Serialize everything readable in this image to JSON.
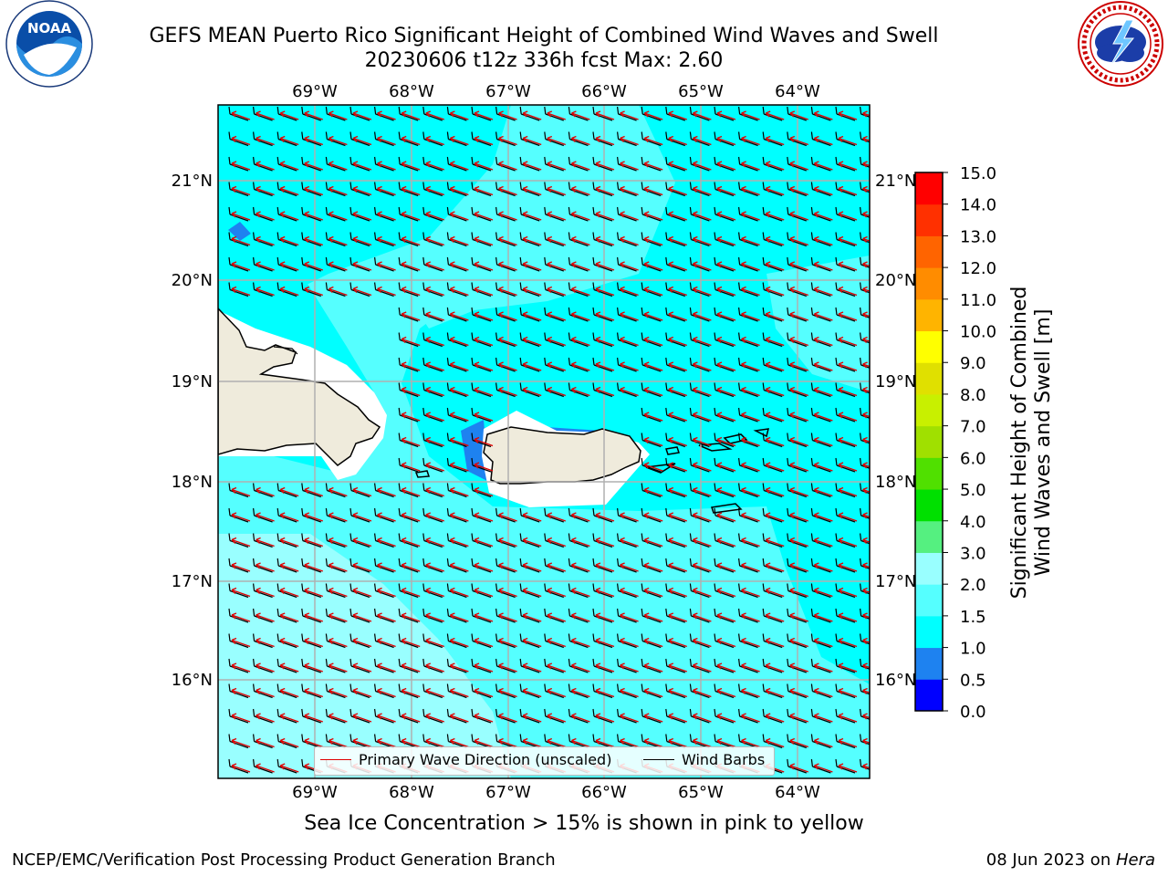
{
  "title": {
    "line1": "GEFS MEAN Puerto Rico Significant Height of Combined Wind Waves and Swell",
    "line2": "20230606 t12z 336h fcst   Max: 2.60"
  },
  "logos": {
    "left": {
      "icon": "noaa-logo-icon",
      "text": "NOAA"
    },
    "right": {
      "icon": "nws-logo-icon"
    }
  },
  "map": {
    "lon_ticks": [
      "69°W",
      "68°W",
      "67°W",
      "66°W",
      "65°W",
      "64°W"
    ],
    "lat_ticks": [
      "21°N",
      "20°N",
      "19°N",
      "18°N",
      "17°N",
      "16°N"
    ],
    "colors": {
      "ocean_cyan": "#00ffff",
      "ocean_light": "#55ffff",
      "ocean_pale": "#99ffff",
      "shallow_blue": "#1e82f0",
      "land": "#efebdc",
      "wave_arrow": "#e00000",
      "barb": "#000000",
      "grid": "#b0b0b0"
    }
  },
  "legend": {
    "primary": "Primary Wave Direction (unscaled)",
    "barbs": "Wind Barbs"
  },
  "colorbar": {
    "label_line1": "Significant Height of Combined",
    "label_line2": "Wind Waves and Swell [m]",
    "ticks": [
      "15.0",
      "14.0",
      "13.0",
      "12.0",
      "11.0",
      "10.0",
      "9.0",
      "8.0",
      "7.0",
      "6.0",
      "5.0",
      "4.0",
      "3.0",
      "2.0",
      "1.5",
      "1.0",
      "0.5",
      "0.0"
    ],
    "colors": [
      "#0000ff",
      "#1e82f0",
      "#00ffff",
      "#55ffff",
      "#99ffff",
      "#55f080",
      "#00e000",
      "#50e000",
      "#a0e000",
      "#c8f000",
      "#e0e000",
      "#ffff00",
      "#ffb400",
      "#ff8c00",
      "#ff6400",
      "#ff3000",
      "#ff0000"
    ]
  },
  "subcaption": "Sea Ice Concentration > 15% is shown in pink to yellow",
  "footer": {
    "left": "NCEP/EMC/Verification Post Processing Product Generation Branch",
    "right_prefix": "08 Jun 2023 on ",
    "right_host": "Hera"
  }
}
